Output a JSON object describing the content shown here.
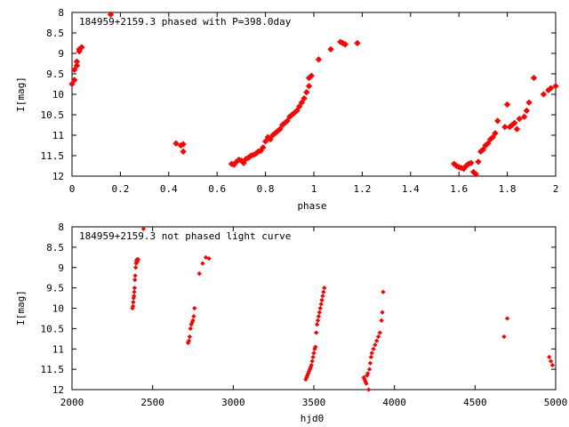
{
  "chart_data": [
    {
      "type": "scatter",
      "title": "184959+2159.3 phased with P=398.0day",
      "xlabel": "phase",
      "ylabel": "I[mag]",
      "xlim": [
        0,
        2
      ],
      "ylim": [
        12,
        8
      ],
      "y_inverted": true,
      "grid": false,
      "color": "#ff0000",
      "xticks": [
        "0",
        "0.2",
        "0.4",
        "0.6",
        "0.8",
        "1",
        "1.2",
        "1.4",
        "1.6",
        "1.8",
        "2"
      ],
      "yticks": [
        "8",
        "8.5",
        "9",
        "9.5",
        "10",
        "10.5",
        "11",
        "11.5",
        "12"
      ],
      "series": [
        {
          "x": [
            0.0,
            0.01,
            0.01,
            0.02,
            0.02,
            0.03,
            0.03,
            0.04,
            0.16,
            0.43,
            0.45,
            0.46,
            0.46,
            0.66,
            0.67,
            0.68,
            0.69,
            0.7,
            0.71,
            0.72,
            0.73,
            0.74,
            0.75,
            0.76,
            0.77,
            0.78,
            0.79,
            0.8,
            0.81,
            0.82,
            0.83,
            0.84,
            0.85,
            0.86,
            0.87,
            0.88,
            0.89,
            0.9,
            0.91,
            0.92,
            0.93,
            0.94,
            0.95,
            0.96,
            0.97,
            0.98,
            0.98,
            0.99,
            1.02,
            1.07,
            1.11,
            1.12,
            1.13,
            1.18,
            1.58,
            1.59,
            1.6,
            1.61,
            1.62,
            1.63,
            1.64,
            1.65,
            1.66,
            1.67,
            1.68,
            1.69,
            1.7,
            1.71,
            1.72,
            1.73,
            1.74,
            1.75,
            1.76,
            1.79,
            1.8,
            1.81,
            1.82,
            1.83,
            1.84,
            1.85,
            1.87,
            1.88,
            1.89,
            1.91,
            1.95,
            1.97,
            1.98,
            2.0
          ],
          "y": [
            9.75,
            9.65,
            9.4,
            9.3,
            9.2,
            8.95,
            8.9,
            8.85,
            8.05,
            11.2,
            11.25,
            11.22,
            11.4,
            11.7,
            11.72,
            11.65,
            11.6,
            11.62,
            11.68,
            11.58,
            11.55,
            11.5,
            11.48,
            11.45,
            11.4,
            11.38,
            11.3,
            11.15,
            11.05,
            11.1,
            11.0,
            10.95,
            10.9,
            10.85,
            10.75,
            10.7,
            10.65,
            10.55,
            10.5,
            10.45,
            10.4,
            10.3,
            10.2,
            10.1,
            9.95,
            9.8,
            9.6,
            9.55,
            9.15,
            8.9,
            8.72,
            8.75,
            8.78,
            8.75,
            11.7,
            11.75,
            11.78,
            11.8,
            11.82,
            11.75,
            11.7,
            11.68,
            11.9,
            11.95,
            11.65,
            11.4,
            11.35,
            11.25,
            11.2,
            11.1,
            11.05,
            10.95,
            10.65,
            10.8,
            10.25,
            10.8,
            10.75,
            10.7,
            10.85,
            10.6,
            10.55,
            10.4,
            10.2,
            9.6,
            10.0,
            9.9,
            9.85,
            9.8
          ]
        }
      ]
    },
    {
      "type": "scatter",
      "title": "184959+2159.3 not phased light curve",
      "xlabel": "hjd0",
      "ylabel": "I[mag]",
      "xlim": [
        2000,
        5000
      ],
      "ylim": [
        12,
        8
      ],
      "y_inverted": true,
      "grid": false,
      "color": "#ff0000",
      "xticks": [
        "2000",
        "2500",
        "3000",
        "3500",
        "4000",
        "4500",
        "5000"
      ],
      "yticks": [
        "8",
        "8.5",
        "9",
        "9.5",
        "10",
        "10.5",
        "11",
        "11.5",
        "12"
      ],
      "series": [
        {
          "x": [
            2375,
            2378,
            2380,
            2382,
            2384,
            2386,
            2388,
            2390,
            2392,
            2395,
            2398,
            2400,
            2402,
            2404,
            2406,
            2410,
            2443,
            2720,
            2725,
            2730,
            2735,
            2740,
            2745,
            2750,
            2755,
            2760,
            2790,
            2810,
            2830,
            2850,
            3450,
            3455,
            3460,
            3465,
            3470,
            3475,
            3480,
            3485,
            3490,
            3495,
            3500,
            3505,
            3510,
            3515,
            3520,
            3525,
            3530,
            3535,
            3540,
            3545,
            3550,
            3555,
            3560,
            3565,
            3810,
            3815,
            3820,
            3825,
            3830,
            3835,
            3840,
            3845,
            3850,
            3855,
            3860,
            3870,
            3880,
            3890,
            3900,
            3910,
            3920,
            3925,
            3930,
            4680,
            4700,
            4960,
            4970,
            4980
          ],
          "y": [
            10.0,
            9.95,
            9.85,
            9.75,
            9.7,
            9.6,
            9.5,
            9.3,
            9.2,
            9.0,
            8.9,
            8.85,
            8.82,
            8.8,
            8.85,
            8.8,
            8.05,
            10.85,
            10.8,
            10.7,
            10.5,
            10.4,
            10.35,
            10.3,
            10.2,
            10.0,
            9.15,
            8.9,
            8.75,
            8.78,
            11.75,
            11.7,
            11.65,
            11.6,
            11.55,
            11.5,
            11.45,
            11.4,
            11.3,
            11.2,
            11.1,
            11.0,
            10.95,
            10.6,
            10.4,
            10.3,
            10.2,
            10.1,
            10.0,
            9.9,
            9.8,
            9.7,
            9.6,
            9.5,
            11.7,
            11.75,
            11.8,
            11.85,
            11.65,
            11.6,
            12.0,
            11.5,
            11.35,
            11.2,
            11.1,
            11.0,
            10.9,
            10.8,
            10.7,
            10.6,
            10.3,
            10.1,
            9.6,
            10.7,
            10.25,
            11.2,
            11.3,
            11.4
          ]
        }
      ]
    }
  ]
}
